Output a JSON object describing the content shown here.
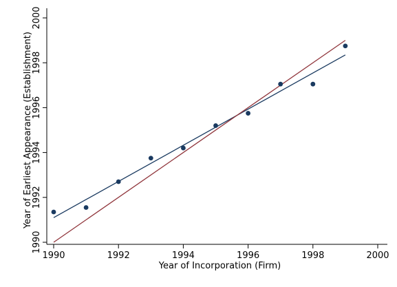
{
  "chart_data": {
    "type": "scatter",
    "title": "",
    "xlabel": "Year of Incorporation (Firm)",
    "ylabel": "Year of Earliest Appearance (Establishment)",
    "xlim": [
      1990,
      2000
    ],
    "ylim": [
      1990,
      2000
    ],
    "xticks": [
      "1990",
      "1992",
      "1994",
      "1996",
      "1998",
      "2000"
    ],
    "yticks": [
      "1990",
      "1992",
      "1994",
      "1996",
      "1998",
      "2000"
    ],
    "grid": false,
    "legend": "none",
    "series": [
      {
        "type": "scatter",
        "color": "#1a3a60",
        "x": [
          1990,
          1991,
          1992,
          1993,
          1994,
          1995,
          1996,
          1997,
          1998,
          1999
        ],
        "y": [
          1991.35,
          1991.55,
          1992.7,
          1993.75,
          1994.2,
          1995.2,
          1995.75,
          1997.05,
          1997.05,
          1998.75
        ]
      },
      {
        "type": "line",
        "color": "#1a3a60",
        "x": [
          1990,
          1999
        ],
        "y": [
          1991.1,
          1998.35
        ]
      },
      {
        "type": "line",
        "color": "#90353b",
        "x": [
          1990,
          1999
        ],
        "y": [
          1990,
          1999
        ]
      }
    ]
  }
}
